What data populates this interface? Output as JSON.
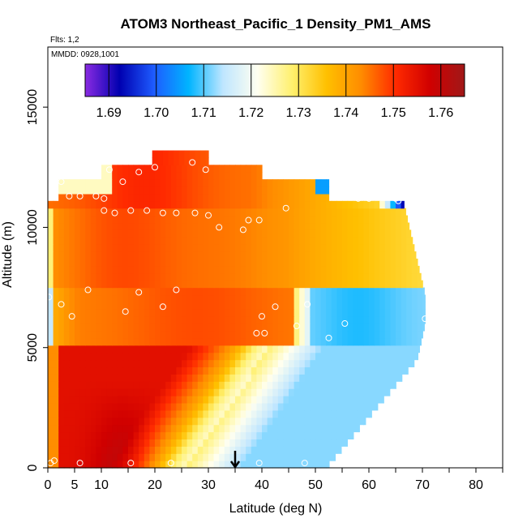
{
  "chart_data": {
    "type": "heatmap",
    "title": "ATOM3 Northeast_Pacific_1 Density_PM1_AMS",
    "flights_label": "Flts: 1,2",
    "dates_label": "MMDD: 0928,1001",
    "xlabel": "Latitude (deg N)",
    "ylabel": "Altitude (m)",
    "xlim": [
      0,
      85
    ],
    "ylim": [
      0,
      17500
    ],
    "x_ticks": [
      0,
      5,
      10,
      20,
      30,
      40,
      50,
      60,
      70,
      80
    ],
    "y_ticks": [
      0,
      5000,
      10000,
      15000
    ],
    "colorbar": {
      "min": 1.685,
      "max": 1.765,
      "ticks": [
        "1.69",
        "1.70",
        "1.71",
        "1.72",
        "1.73",
        "1.74",
        "1.75",
        "1.76"
      ],
      "tick_values": [
        1.69,
        1.7,
        1.71,
        1.72,
        1.73,
        1.74,
        1.75,
        1.76
      ],
      "colors": [
        "#8a2be2",
        "#0000b0",
        "#1e5cff",
        "#00b4ff",
        "#bfe6ff",
        "#fffff0",
        "#fff06e",
        "#ffc000",
        "#ff8c00",
        "#ff2a00",
        "#d00000",
        "#a01818"
      ]
    },
    "marker": {
      "latitude": 35,
      "label": "arrow at 35 deg N"
    },
    "samples": [
      {
        "lat": 0.5,
        "alt": 200
      },
      {
        "lat": 1.2,
        "alt": 300
      },
      {
        "lat": 6,
        "alt": 200
      },
      {
        "lat": 15.5,
        "alt": 200
      },
      {
        "lat": 23,
        "alt": 200
      },
      {
        "lat": 39.5,
        "alt": 200
      },
      {
        "lat": 48,
        "alt": 200
      },
      {
        "lat": 0.2,
        "alt": 7100
      },
      {
        "lat": 2.5,
        "alt": 6800
      },
      {
        "lat": 4.5,
        "alt": 6300
      },
      {
        "lat": 7.5,
        "alt": 7400
      },
      {
        "lat": 14.5,
        "alt": 6500
      },
      {
        "lat": 17,
        "alt": 7300
      },
      {
        "lat": 21.5,
        "alt": 6700
      },
      {
        "lat": 24,
        "alt": 7400
      },
      {
        "lat": 39,
        "alt": 5600
      },
      {
        "lat": 40,
        "alt": 6300
      },
      {
        "lat": 40.5,
        "alt": 5600
      },
      {
        "lat": 42.5,
        "alt": 6700
      },
      {
        "lat": 46.5,
        "alt": 5900
      },
      {
        "lat": 48.5,
        "alt": 6800
      },
      {
        "lat": 52.5,
        "alt": 5400
      },
      {
        "lat": 55.5,
        "alt": 6000
      },
      {
        "lat": 70.5,
        "alt": 6200
      },
      {
        "lat": 2.5,
        "alt": 11900
      },
      {
        "lat": 4,
        "alt": 11300
      },
      {
        "lat": 6,
        "alt": 11300
      },
      {
        "lat": 9,
        "alt": 11300
      },
      {
        "lat": 10.5,
        "alt": 11200
      },
      {
        "lat": 11.5,
        "alt": 12400
      },
      {
        "lat": 14,
        "alt": 11900
      },
      {
        "lat": 10.5,
        "alt": 10700
      },
      {
        "lat": 12.5,
        "alt": 10600
      },
      {
        "lat": 15.5,
        "alt": 10700
      },
      {
        "lat": 17,
        "alt": 12300
      },
      {
        "lat": 20,
        "alt": 12500
      },
      {
        "lat": 18.5,
        "alt": 10700
      },
      {
        "lat": 21.5,
        "alt": 10600
      },
      {
        "lat": 24,
        "alt": 10600
      },
      {
        "lat": 27,
        "alt": 12700
      },
      {
        "lat": 29.5,
        "alt": 12400
      },
      {
        "lat": 27.5,
        "alt": 10600
      },
      {
        "lat": 30,
        "alt": 10500
      },
      {
        "lat": 32,
        "alt": 10000
      },
      {
        "lat": 36.5,
        "alt": 9900
      },
      {
        "lat": 37.5,
        "alt": 10300
      },
      {
        "lat": 39.5,
        "alt": 10300
      },
      {
        "lat": 44.5,
        "alt": 10800
      },
      {
        "lat": 58,
        "alt": 11200
      },
      {
        "lat": 60,
        "alt": 11200
      },
      {
        "lat": 65,
        "alt": 11200
      },
      {
        "lat": 65.5,
        "alt": 11100
      }
    ],
    "field_description": "Interpolated curtain of PM1 particle density (g/cm3) versus latitude and altitude"
  }
}
